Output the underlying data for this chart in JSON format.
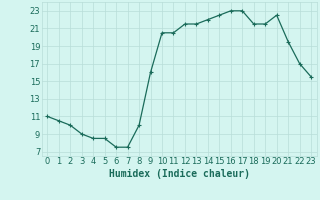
{
  "x": [
    0,
    1,
    2,
    3,
    4,
    5,
    6,
    7,
    8,
    9,
    10,
    11,
    12,
    13,
    14,
    15,
    16,
    17,
    18,
    19,
    20,
    21,
    22,
    23
  ],
  "y": [
    11,
    10.5,
    10,
    9,
    8.5,
    8.5,
    7.5,
    7.5,
    10,
    16,
    20.5,
    20.5,
    21.5,
    21.5,
    22,
    22.5,
    23,
    23,
    21.5,
    21.5,
    22.5,
    19.5,
    17,
    15.5
  ],
  "line_color": "#1a6b5a",
  "marker": "+",
  "marker_size": 3,
  "marker_linewidth": 0.8,
  "line_width": 0.9,
  "background_color": "#d4f5f0",
  "grid_color": "#b8ddd8",
  "xlabel": "Humidex (Indice chaleur)",
  "xlabel_fontsize": 7,
  "xlabel_color": "#1a6b5a",
  "ylabel_ticks": [
    7,
    9,
    11,
    13,
    15,
    17,
    19,
    21,
    23
  ],
  "xticks": [
    0,
    1,
    2,
    3,
    4,
    5,
    6,
    7,
    8,
    9,
    10,
    11,
    12,
    13,
    14,
    15,
    16,
    17,
    18,
    19,
    20,
    21,
    22,
    23
  ],
  "xlim": [
    -0.5,
    23.5
  ],
  "ylim": [
    6.5,
    24
  ],
  "tick_fontsize": 6,
  "tick_color": "#1a6b5a"
}
